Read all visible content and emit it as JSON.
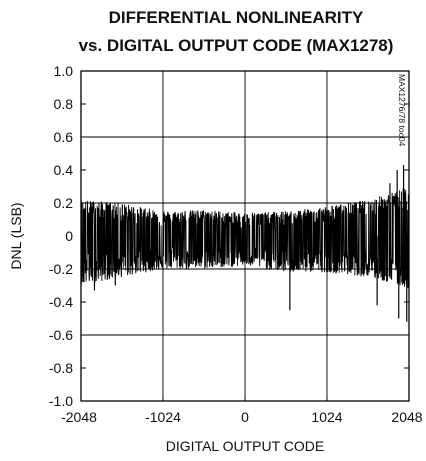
{
  "chart_data": {
    "type": "line",
    "title_line1": "DIFFERENTIAL NONLINEARITY",
    "title_line2": "vs. DIGITAL OUTPUT CODE (MAX1278)",
    "xlabel": "DIGITAL OUTPUT CODE",
    "ylabel": "DNL (LSB)",
    "figure_id": "MAX1276/78 toc04",
    "xlim": [
      -2048,
      2048
    ],
    "ylim": [
      -1.0,
      1.0
    ],
    "x_ticks": [
      -2048,
      -1024,
      0,
      1024,
      2048
    ],
    "x_tick_labels": [
      "-2048",
      "-1024",
      "0",
      "1024",
      "2048"
    ],
    "y_ticks": [
      1.0,
      0.8,
      0.6,
      0.4,
      0.2,
      0,
      -0.2,
      -0.4,
      -0.6,
      -0.8,
      -1.0
    ],
    "y_tick_labels": [
      "1.0",
      "0.8",
      "0.6",
      "0.4",
      "0.2",
      "0",
      "-0.2",
      "-0.4",
      "-0.6",
      "-0.8",
      "-1.0"
    ],
    "grid": true,
    "series": [
      {
        "envelope_points": [
          {
            "x": -2048,
            "upper": 0.22,
            "lower": -0.3
          },
          {
            "x": -1536,
            "upper": 0.2,
            "lower": -0.25
          },
          {
            "x": -1024,
            "upper": 0.15,
            "lower": -0.2
          },
          {
            "x": -512,
            "upper": 0.16,
            "lower": -0.2
          },
          {
            "x": 0,
            "upper": 0.14,
            "lower": -0.18
          },
          {
            "x": 512,
            "upper": 0.15,
            "lower": -0.22
          },
          {
            "x": 1024,
            "upper": 0.18,
            "lower": -0.22
          },
          {
            "x": 1536,
            "upper": 0.22,
            "lower": -0.25
          },
          {
            "x": 2048,
            "upper": 0.3,
            "lower": -0.32
          }
        ],
        "spikes": [
          {
            "x": 560,
            "y": -0.45
          },
          {
            "x": 1650,
            "y": -0.42
          },
          {
            "x": 1810,
            "y": 0.32
          },
          {
            "x": 1900,
            "y": 0.4
          },
          {
            "x": 1920,
            "y": -0.5
          },
          {
            "x": 1980,
            "y": 0.43
          },
          {
            "x": 2020,
            "y": -0.52
          },
          {
            "x": -1880,
            "y": -0.33
          },
          {
            "x": -1620,
            "y": -0.3
          }
        ],
        "color": "#000000"
      }
    ]
  }
}
